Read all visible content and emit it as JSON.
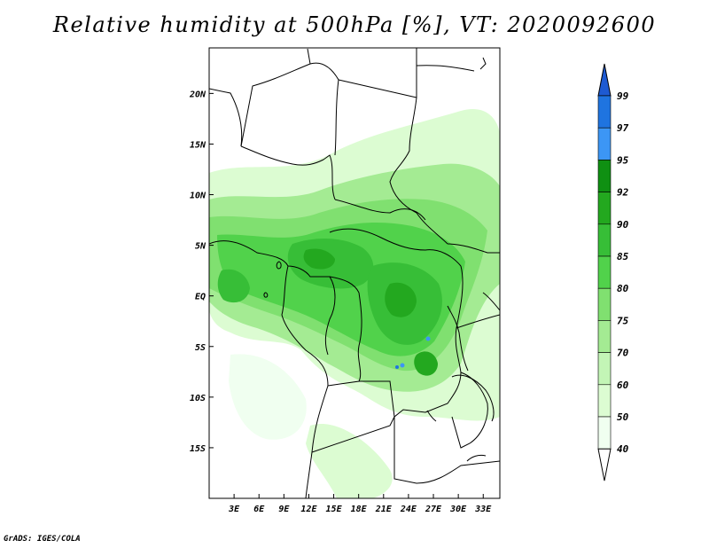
{
  "title": "Relative humidity at 500hPa [%], VT: 2020092600",
  "credit": "GrADS: IGES/COLA",
  "map": {
    "lon_labels": [
      "3E",
      "6E",
      "9E",
      "12E",
      "15E",
      "18E",
      "21E",
      "24E",
      "27E",
      "30E",
      "33E"
    ],
    "lat_labels": [
      "20N",
      "15N",
      "10N",
      "5N",
      "EQ",
      "5S",
      "10S",
      "15S"
    ],
    "lon_range": [
      0,
      35
    ],
    "lat_range": [
      -20,
      24.5
    ]
  },
  "colorbar": {
    "levels": [
      "99",
      "97",
      "95",
      "92",
      "90",
      "85",
      "80",
      "75",
      "70",
      "60",
      "50",
      "40"
    ],
    "colors": [
      "#1e5ad2",
      "#1f74e0",
      "#3c96f5",
      "#0f9012",
      "#23a81f",
      "#37be37",
      "#51d24b",
      "#80e070",
      "#a4eb93",
      "#c3f5b6",
      "#dcfcd2",
      "#f0fff0",
      "#ffffff"
    ]
  }
}
